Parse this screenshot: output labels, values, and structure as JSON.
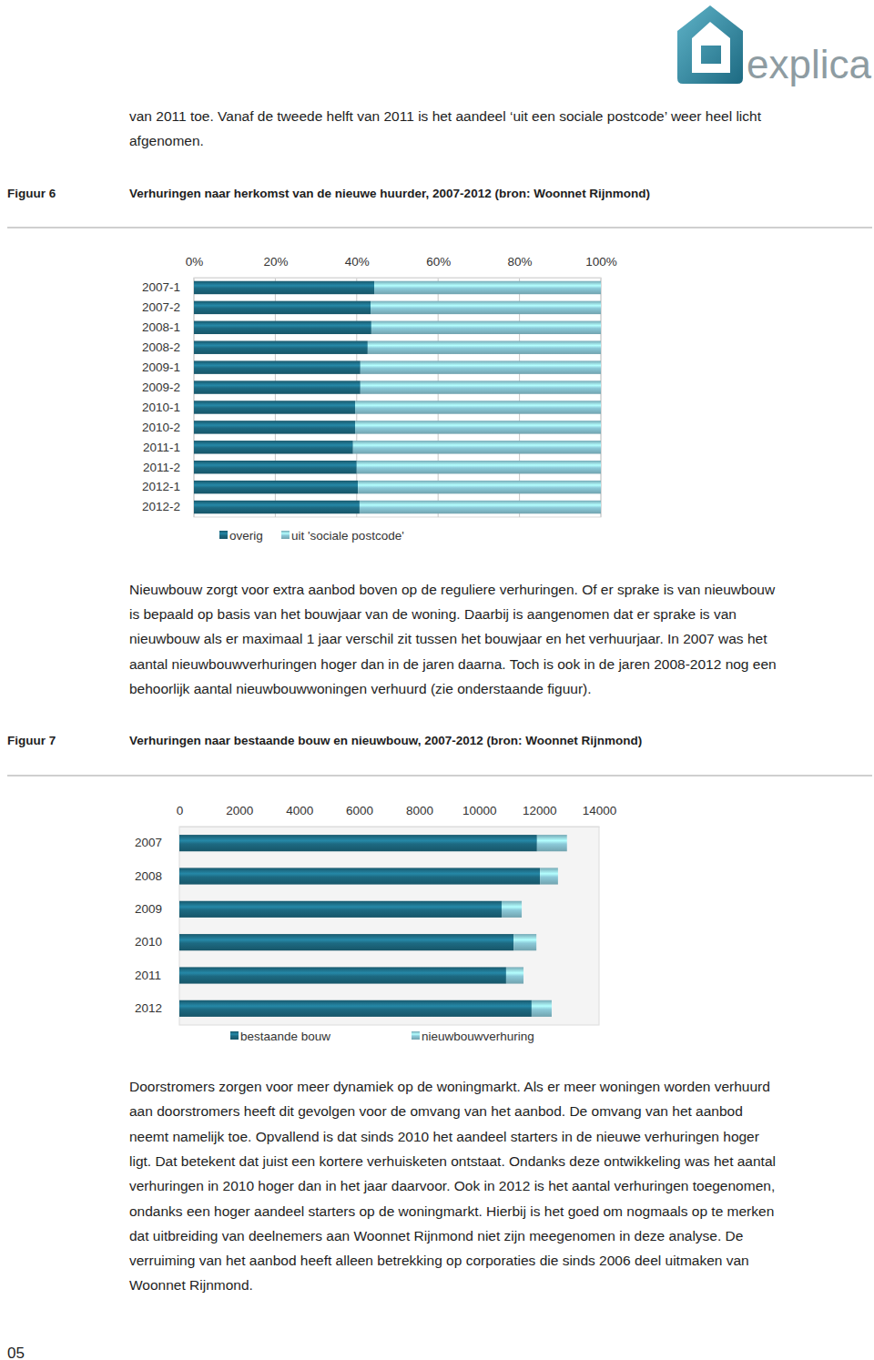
{
  "logo": "explica",
  "intro": [
    "van 2011 toe. Vanaf de tweede helft van 2011 is het aandeel ‘uit een sociale postcode’ weer heel licht",
    "afgenomen."
  ],
  "figures": [
    {
      "label": "Figuur 6"
    },
    {
      "label": "Figuur 7"
    }
  ],
  "paragraphs": [
    [
      "Nieuwbouw zorgt voor extra aanbod boven op de reguliere verhuringen. Of er sprake is van nieuwbouw",
      "is bepaald op basis van het bouwjaar van de woning. Daarbij is aangenomen dat er sprake is van",
      "nieuwbouw als er maximaal 1 jaar verschil zit tussen het bouwjaar en het verhuurjaar. In 2007 was het",
      "aantal nieuwbouwverhuringen hoger dan in de jaren daarna. Toch is ook in de jaren 2008-2012 nog een",
      "behoorlijk aantal nieuwbouwwoningen verhuurd (zie onderstaande figuur)."
    ],
    [
      "Doorstromers zorgen voor meer dynamiek op de woningmarkt. Als er meer woningen worden verhuurd",
      "aan doorstromers heeft dit gevolgen voor de omvang van het aanbod. De omvang van het aanbod",
      "neemt namelijk toe. Opvallend is dat sinds 2010 het aandeel starters in de nieuwe verhuringen hoger",
      "ligt. Dat betekent dat juist een kortere verhuisketen ontstaat. Ondanks deze ontwikkeling was het aantal",
      "verhuringen in 2010 hoger dan in het jaar daarvoor. Ook in 2012 is het aantal verhuringen toegenomen,",
      "ondanks een hoger aandeel starters op de woningmarkt. Hierbij is het goed om nogmaals op te merken",
      "dat uitbreiding van deelnemers aan Woonnet Rijnmond niet zijn meegenomen in deze analyse. De",
      "verruiming van het aanbod heeft alleen betrekking op corporaties die sinds 2006 deel uitmaken van",
      "Woonnet Rijnmond."
    ]
  ],
  "page_number": "05",
  "chart_data": [
    {
      "type": "bar",
      "title": "Verhuringen naar herkomst van de nieuwe huurder, 2007-2012 (bron: Woonnet Rijnmond)",
      "orientation": "horizontal",
      "stacked": true,
      "grid": true,
      "legend": "bottom",
      "categories": [
        "2007-1",
        "2007-2",
        "2008-1",
        "2008-2",
        "2009-1",
        "2009-2",
        "2010-1",
        "2010-2",
        "2011-1",
        "2011-2",
        "2012-1",
        "2012-2"
      ],
      "series": [
        {
          "name": "overig",
          "color": "#1d6a82",
          "values": [
            44.3,
            43.4,
            43.6,
            42.7,
            40.9,
            40.9,
            39.6,
            39.6,
            39.1,
            40.0,
            40.3,
            40.7
          ]
        },
        {
          "name": "uit 'sociale postcode'",
          "color": "#8ccad9",
          "values": [
            55.7,
            56.6,
            56.4,
            57.3,
            59.1,
            59.1,
            60.4,
            60.4,
            60.9,
            60.0,
            59.7,
            59.3
          ]
        }
      ],
      "xlim": [
        0,
        100
      ],
      "xticks": [
        {
          "value": 0,
          "label": "0%"
        },
        {
          "value": 20,
          "label": "20%"
        },
        {
          "value": 40,
          "label": "40%"
        },
        {
          "value": 60,
          "label": "60%"
        },
        {
          "value": 80,
          "label": "80%"
        },
        {
          "value": 100,
          "label": "100%"
        }
      ]
    },
    {
      "type": "bar",
      "title": "Verhuringen naar bestaande bouw en nieuwbouw, 2007-2012 (bron: Woonnet Rijnmond)",
      "orientation": "horizontal",
      "stacked": true,
      "grid": false,
      "legend": "bottom",
      "categories": [
        "2007",
        "2008",
        "2009",
        "2010",
        "2011",
        "2012"
      ],
      "series": [
        {
          "name": "bestaande bouw",
          "color": "#1d6a82",
          "values": [
            11930,
            12030,
            10750,
            11150,
            10900,
            11750
          ]
        },
        {
          "name": "nieuwbouwverhuring",
          "color": "#8ccad9",
          "values": [
            1000,
            600,
            670,
            760,
            580,
            670
          ]
        }
      ],
      "xlim": [
        0,
        14000
      ],
      "xticks": [
        0,
        2000,
        4000,
        6000,
        8000,
        10000,
        12000,
        14000
      ]
    }
  ]
}
